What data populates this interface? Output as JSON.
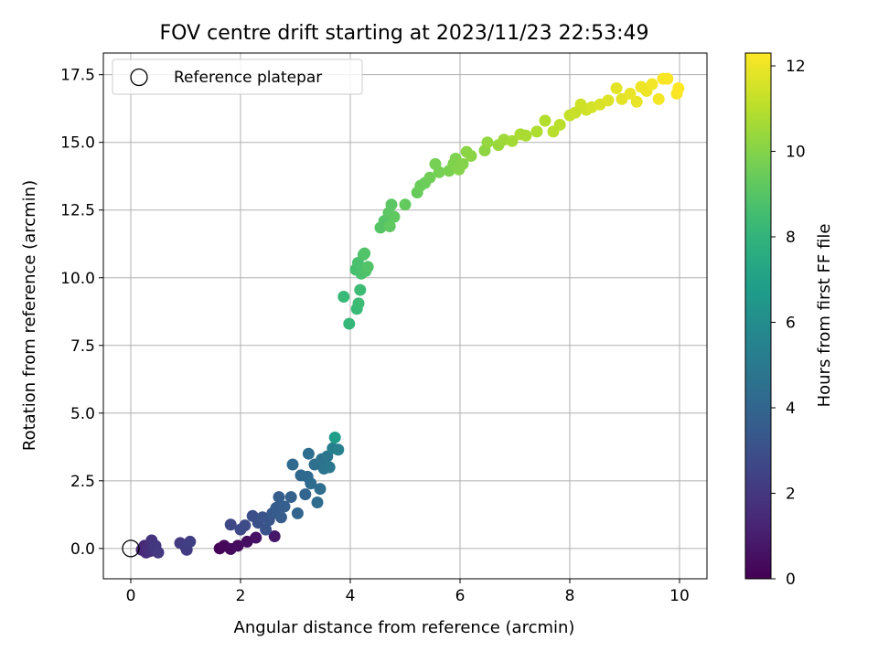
{
  "chart_data": {
    "type": "scatter",
    "title": "FOV centre drift starting at 2023/11/23 22:53:49",
    "xlabel": "Angular distance from reference (arcmin)",
    "ylabel": "Rotation from reference (arcmin)",
    "xlim": [
      -0.5,
      10.5
    ],
    "ylim": [
      -1.12,
      18.3
    ],
    "xticks": [
      0,
      2,
      4,
      6,
      8,
      10
    ],
    "xtick_labels": [
      "0",
      "2",
      "4",
      "6",
      "8",
      "10"
    ],
    "yticks": [
      0.0,
      2.5,
      5.0,
      7.5,
      10.0,
      12.5,
      15.0,
      17.5
    ],
    "ytick_labels": [
      "0.0",
      "2.5",
      "5.0",
      "7.5",
      "10.0",
      "12.5",
      "15.0",
      "17.5"
    ],
    "grid": true,
    "legend": {
      "position": "upper-left",
      "entries": [
        {
          "label": "Reference platepar",
          "marker": "open-circle"
        }
      ]
    },
    "reference_point": {
      "x": 0,
      "y": 0
    },
    "colorbar": {
      "label": "Hours from first FF file",
      "colormap": "viridis",
      "range": [
        0,
        12.3
      ],
      "ticks": [
        0,
        2,
        4,
        6,
        8,
        10,
        12
      ],
      "tick_labels": [
        "0",
        "2",
        "4",
        "6",
        "8",
        "10",
        "12"
      ]
    },
    "series": [
      {
        "values": [
          {
            "x": 0.2,
            "y": -0.05,
            "c": 1.3
          },
          {
            "x": 0.25,
            "y": 0.1,
            "c": 1.4
          },
          {
            "x": 0.28,
            "y": -0.15,
            "c": 1.5
          },
          {
            "x": 0.32,
            "y": 0.05,
            "c": 1.6
          },
          {
            "x": 0.35,
            "y": -0.1,
            "c": 1.7
          },
          {
            "x": 0.38,
            "y": 0.3,
            "c": 1.8
          },
          {
            "x": 0.42,
            "y": 0.0,
            "c": 1.9
          },
          {
            "x": 0.45,
            "y": 0.1,
            "c": 2.0
          },
          {
            "x": 0.5,
            "y": -0.15,
            "c": 2.1
          },
          {
            "x": 0.9,
            "y": 0.2,
            "c": 2.1
          },
          {
            "x": 1.0,
            "y": 0.05,
            "c": 2.2
          },
          {
            "x": 1.02,
            "y": -0.05,
            "c": 2.2
          },
          {
            "x": 1.08,
            "y": 0.25,
            "c": 2.3
          },
          {
            "x": 1.62,
            "y": 0.0,
            "c": 0.1
          },
          {
            "x": 1.7,
            "y": 0.1,
            "c": 0.2
          },
          {
            "x": 1.82,
            "y": -0.02,
            "c": 0.3
          },
          {
            "x": 1.95,
            "y": 0.1,
            "c": 0.4
          },
          {
            "x": 2.12,
            "y": 0.25,
            "c": 0.5
          },
          {
            "x": 2.28,
            "y": 0.4,
            "c": 0.6
          },
          {
            "x": 2.62,
            "y": 0.45,
            "c": 0.8
          },
          {
            "x": 1.82,
            "y": 0.88,
            "c": 2.6
          },
          {
            "x": 2.0,
            "y": 0.7,
            "c": 2.7
          },
          {
            "x": 2.08,
            "y": 0.85,
            "c": 2.8
          },
          {
            "x": 2.22,
            "y": 1.2,
            "c": 2.9
          },
          {
            "x": 2.32,
            "y": 0.95,
            "c": 3.0
          },
          {
            "x": 2.4,
            "y": 1.15,
            "c": 3.1
          },
          {
            "x": 2.46,
            "y": 0.7,
            "c": 3.2
          },
          {
            "x": 2.52,
            "y": 1.05,
            "c": 3.3
          },
          {
            "x": 2.58,
            "y": 1.3,
            "c": 3.4
          },
          {
            "x": 2.65,
            "y": 1.5,
            "c": 3.5
          },
          {
            "x": 2.7,
            "y": 1.9,
            "c": 3.6
          },
          {
            "x": 2.74,
            "y": 1.15,
            "c": 3.6
          },
          {
            "x": 2.8,
            "y": 1.55,
            "c": 3.7
          },
          {
            "x": 2.92,
            "y": 1.9,
            "c": 3.8
          },
          {
            "x": 2.95,
            "y": 3.1,
            "c": 4.2
          },
          {
            "x": 3.04,
            "y": 1.3,
            "c": 3.9
          },
          {
            "x": 3.1,
            "y": 2.7,
            "c": 4.1
          },
          {
            "x": 3.18,
            "y": 2.0,
            "c": 4.0
          },
          {
            "x": 3.22,
            "y": 2.65,
            "c": 4.2
          },
          {
            "x": 3.28,
            "y": 2.4,
            "c": 4.3
          },
          {
            "x": 3.24,
            "y": 3.5,
            "c": 4.4
          },
          {
            "x": 3.35,
            "y": 3.1,
            "c": 4.5
          },
          {
            "x": 3.4,
            "y": 1.7,
            "c": 4.3
          },
          {
            "x": 3.45,
            "y": 2.2,
            "c": 4.4
          },
          {
            "x": 3.48,
            "y": 3.3,
            "c": 4.6
          },
          {
            "x": 3.52,
            "y": 2.95,
            "c": 4.7
          },
          {
            "x": 3.58,
            "y": 3.4,
            "c": 4.8
          },
          {
            "x": 3.62,
            "y": 3.0,
            "c": 4.9
          },
          {
            "x": 3.68,
            "y": 3.7,
            "c": 5.2
          },
          {
            "x": 3.72,
            "y": 4.1,
            "c": 6.8
          },
          {
            "x": 3.78,
            "y": 3.65,
            "c": 5.4
          },
          {
            "x": 3.98,
            "y": 8.3,
            "c": 8.2
          },
          {
            "x": 3.88,
            "y": 9.3,
            "c": 8.3
          },
          {
            "x": 4.12,
            "y": 8.85,
            "c": 8.3
          },
          {
            "x": 4.15,
            "y": 9.05,
            "c": 8.4
          },
          {
            "x": 4.18,
            "y": 9.55,
            "c": 8.4
          },
          {
            "x": 4.1,
            "y": 10.3,
            "c": 8.6
          },
          {
            "x": 4.14,
            "y": 10.55,
            "c": 8.7
          },
          {
            "x": 4.2,
            "y": 10.15,
            "c": 8.7
          },
          {
            "x": 4.24,
            "y": 10.85,
            "c": 8.8
          },
          {
            "x": 4.28,
            "y": 10.25,
            "c": 8.8
          },
          {
            "x": 4.32,
            "y": 10.4,
            "c": 8.9
          },
          {
            "x": 4.26,
            "y": 10.9,
            "c": 8.9
          },
          {
            "x": 4.55,
            "y": 11.85,
            "c": 9.0
          },
          {
            "x": 4.62,
            "y": 12.1,
            "c": 9.0
          },
          {
            "x": 4.7,
            "y": 12.4,
            "c": 9.1
          },
          {
            "x": 4.75,
            "y": 12.7,
            "c": 9.1
          },
          {
            "x": 4.72,
            "y": 11.9,
            "c": 9.2
          },
          {
            "x": 4.8,
            "y": 12.25,
            "c": 9.2
          },
          {
            "x": 5.0,
            "y": 12.7,
            "c": 9.3
          },
          {
            "x": 5.22,
            "y": 13.15,
            "c": 9.4
          },
          {
            "x": 5.28,
            "y": 13.4,
            "c": 9.5
          },
          {
            "x": 5.36,
            "y": 13.5,
            "c": 9.5
          },
          {
            "x": 5.45,
            "y": 13.7,
            "c": 9.6
          },
          {
            "x": 5.55,
            "y": 14.2,
            "c": 9.7
          },
          {
            "x": 5.62,
            "y": 13.9,
            "c": 9.7
          },
          {
            "x": 5.8,
            "y": 13.95,
            "c": 9.8
          },
          {
            "x": 5.88,
            "y": 14.2,
            "c": 9.9
          },
          {
            "x": 5.92,
            "y": 14.4,
            "c": 9.9
          },
          {
            "x": 5.98,
            "y": 14.0,
            "c": 10.0
          },
          {
            "x": 6.05,
            "y": 14.2,
            "c": 10.0
          },
          {
            "x": 6.12,
            "y": 14.65,
            "c": 10.1
          },
          {
            "x": 6.2,
            "y": 14.5,
            "c": 10.1
          },
          {
            "x": 6.45,
            "y": 14.7,
            "c": 10.2
          },
          {
            "x": 6.5,
            "y": 15.0,
            "c": 10.3
          },
          {
            "x": 6.7,
            "y": 14.9,
            "c": 10.4
          },
          {
            "x": 6.8,
            "y": 15.1,
            "c": 10.5
          },
          {
            "x": 6.95,
            "y": 15.05,
            "c": 10.6
          },
          {
            "x": 7.1,
            "y": 15.3,
            "c": 10.7
          },
          {
            "x": 7.2,
            "y": 15.25,
            "c": 10.7
          },
          {
            "x": 7.4,
            "y": 15.4,
            "c": 10.8
          },
          {
            "x": 7.55,
            "y": 15.8,
            "c": 10.9
          },
          {
            "x": 7.7,
            "y": 15.4,
            "c": 11.0
          },
          {
            "x": 7.82,
            "y": 15.65,
            "c": 11.0
          },
          {
            "x": 8.0,
            "y": 16.0,
            "c": 11.2
          },
          {
            "x": 8.1,
            "y": 16.1,
            "c": 11.3
          },
          {
            "x": 8.2,
            "y": 16.4,
            "c": 11.4
          },
          {
            "x": 8.3,
            "y": 16.2,
            "c": 11.4
          },
          {
            "x": 8.4,
            "y": 16.3,
            "c": 11.5
          },
          {
            "x": 8.55,
            "y": 16.4,
            "c": 11.6
          },
          {
            "x": 8.7,
            "y": 16.55,
            "c": 11.7
          },
          {
            "x": 8.85,
            "y": 17.0,
            "c": 11.8
          },
          {
            "x": 8.95,
            "y": 16.6,
            "c": 11.8
          },
          {
            "x": 9.1,
            "y": 16.8,
            "c": 11.9
          },
          {
            "x": 9.22,
            "y": 16.5,
            "c": 11.9
          },
          {
            "x": 9.3,
            "y": 17.05,
            "c": 12.0
          },
          {
            "x": 9.4,
            "y": 16.9,
            "c": 12.0
          },
          {
            "x": 9.5,
            "y": 17.15,
            "c": 12.1
          },
          {
            "x": 9.62,
            "y": 16.6,
            "c": 12.1
          },
          {
            "x": 9.7,
            "y": 17.35,
            "c": 12.2
          },
          {
            "x": 9.78,
            "y": 17.35,
            "c": 12.2
          },
          {
            "x": 9.95,
            "y": 16.8,
            "c": 12.2
          },
          {
            "x": 9.98,
            "y": 17.0,
            "c": 12.3
          }
        ]
      }
    ]
  }
}
